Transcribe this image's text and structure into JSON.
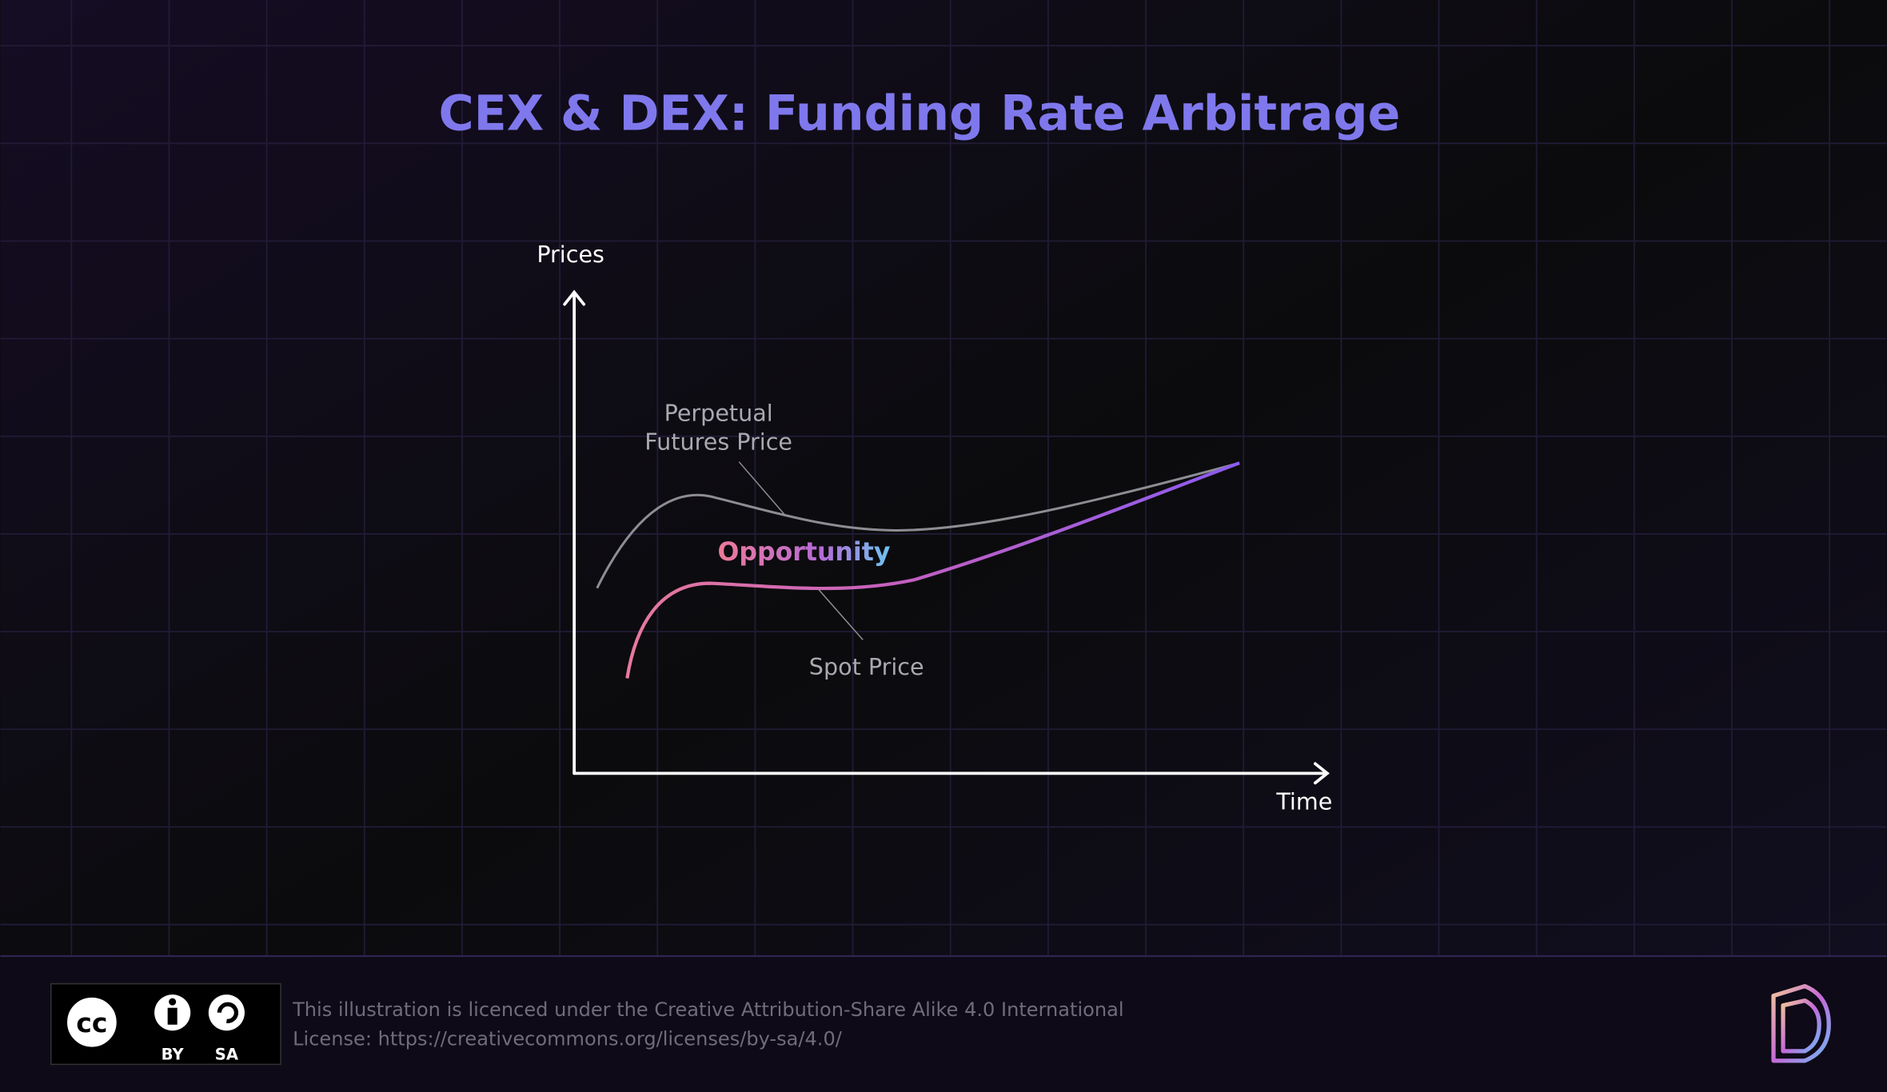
{
  "title": "CEX & DEX: Funding Rate Arbitrage",
  "axes": {
    "y": "Prices",
    "x": "Time"
  },
  "curves": {
    "futures": {
      "label": [
        "Perpetual",
        "Futures Price"
      ]
    },
    "spot": {
      "label": "Spot Price"
    }
  },
  "annotation": "Opportunity",
  "footer": {
    "license_lines": [
      "This illustration is licenced under the Creative Attribution-Share Alike 4.0 International",
      "License: https://creativecommons.org/licenses/by-sa/4.0/"
    ],
    "badges": {
      "cc": "cc",
      "by": "BY",
      "sa": "SA"
    }
  }
}
